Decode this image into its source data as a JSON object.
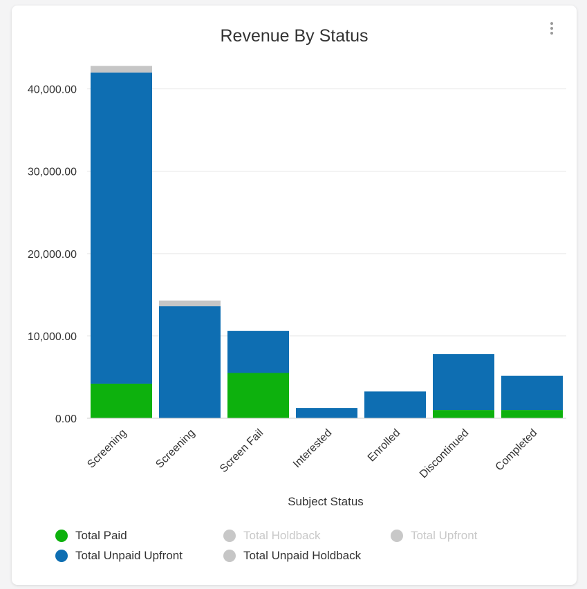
{
  "colors": {
    "paid": "#0db10d",
    "unpaid_upfront": "#0e6eb2",
    "unpaid_holdback": "#c6c6c6",
    "hidden": "#c8c8c8"
  },
  "menu_icon": "more-vertical-icon",
  "chart_data": {
    "type": "bar",
    "stacked": true,
    "title": "Revenue By Status",
    "xlabel": "Subject Status",
    "ylabel": "",
    "ylim": [
      0,
      44000
    ],
    "yticks": [
      0,
      10000,
      20000,
      30000,
      40000
    ],
    "ytick_labels": [
      "0.00",
      "10,000.00",
      "20,000.00",
      "30,000.00",
      "40,000.00"
    ],
    "categories": [
      "Screening",
      "Screening",
      "Screen Fail",
      "Interested",
      "Enrolled",
      "Discontinued",
      "Completed"
    ],
    "series": [
      {
        "name": "Total Paid",
        "key": "paid",
        "visible": true,
        "values": [
          4200,
          0,
          5500,
          0,
          0,
          1000,
          1000
        ]
      },
      {
        "name": "Total Unpaid Upfront",
        "key": "unpaid_upfront",
        "visible": true,
        "values": [
          37800,
          13600,
          5100,
          1250,
          3250,
          6800,
          4150
        ]
      },
      {
        "name": "Total Unpaid Holdback",
        "key": "unpaid_holdback",
        "visible": true,
        "values": [
          800,
          700,
          0,
          0,
          0,
          0,
          0
        ]
      }
    ],
    "grid": true,
    "legend_position": "bottom",
    "legend": [
      {
        "label": "Total Paid",
        "key": "paid",
        "visible": true
      },
      {
        "label": "Total Holdback",
        "key": "holdback",
        "visible": false
      },
      {
        "label": "Total Upfront",
        "key": "upfront",
        "visible": false
      },
      {
        "label": "Total Unpaid Upfront",
        "key": "unpaid_upfront",
        "visible": true
      },
      {
        "label": "Total Unpaid Holdback",
        "key": "unpaid_holdback",
        "visible": true
      }
    ]
  }
}
